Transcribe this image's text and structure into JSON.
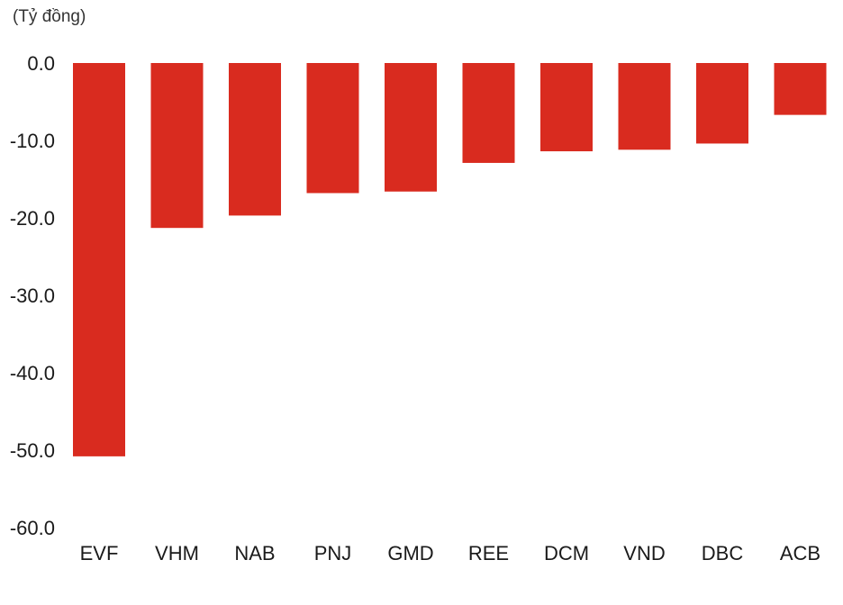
{
  "chart_data": {
    "type": "bar",
    "unit_label": "(Tỷ đồng)",
    "title": "",
    "xlabel": "",
    "ylabel": "",
    "categories": [
      "EVF",
      "VHM",
      "NAB",
      "PNJ",
      "GMD",
      "REE",
      "DCM",
      "VND",
      "DBC",
      "ACB"
    ],
    "values": [
      -50.8,
      -21.3,
      -19.7,
      -16.8,
      -16.6,
      -12.9,
      -11.4,
      -11.2,
      -10.4,
      -6.7
    ],
    "ylim": [
      -60,
      0
    ],
    "yticks": [
      0,
      -10,
      -20,
      -30,
      -40,
      -50,
      -60
    ],
    "ytick_labels": [
      "0.0",
      "-10.0",
      "-20.0",
      "-30.0",
      "-40.0",
      "-50.0",
      "-60.0"
    ],
    "bar_color": "#d92b1f",
    "grid": false,
    "legend": "none"
  }
}
